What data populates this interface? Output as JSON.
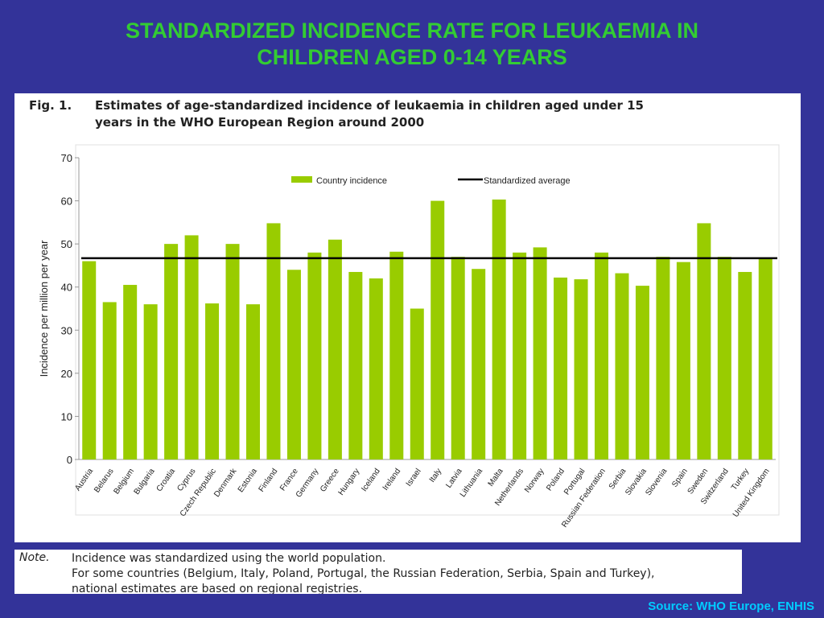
{
  "slide": {
    "title_line1": "STANDARDIZED INCIDENCE RATE FOR LEUKAEMIA IN",
    "title_line2": "CHILDREN AGED 0-14 YEARS",
    "source": "Source: WHO Europe, ENHIS"
  },
  "figure": {
    "label": "Fig. 1.",
    "caption_line1": "Estimates of age-standardized incidence of leukaemia in children aged under 15",
    "caption_line2": "years in the WHO European Region around 2000"
  },
  "note": {
    "label": "Note.",
    "lines": [
      "Incidence was standardized using the world population.",
      "For some countries (Belgium, Italy, Poland, Portugal, the Russian Federation, Serbia, Spain and Turkey),",
      "national estimates are based on regional registries."
    ]
  },
  "colors": {
    "bar": "#99cc00",
    "average_line": "#000000",
    "title": "#33cc33",
    "source": "#00ccff",
    "background": "#333399"
  },
  "chart_data": {
    "type": "bar",
    "ylabel": "Incidence per million per year",
    "ylim": [
      0,
      70
    ],
    "yticks": [
      0,
      10,
      20,
      30,
      40,
      50,
      60,
      70
    ],
    "grid": false,
    "legend_position": "top",
    "categories": [
      "Austria",
      "Belarus",
      "Belgium",
      "Bulgaria",
      "Croatia",
      "Cyprus",
      "Czech Republic",
      "Denmark",
      "Estonia",
      "Finland",
      "France",
      "Germany",
      "Greece",
      "Hungary",
      "Iceland",
      "Ireland",
      "Israel",
      "Italy",
      "Latvia",
      "Lithuania",
      "Malta",
      "Netherlands",
      "Norway",
      "Poland",
      "Portugal",
      "Russian Federation",
      "Serbia",
      "Slovakia",
      "Slovenia",
      "Spain",
      "Sweden",
      "Switzerland",
      "Turkey",
      "United Kingdom"
    ],
    "series": [
      {
        "name": "Country incidence",
        "values": [
          46,
          36.5,
          40.5,
          36,
          50,
          52,
          36.2,
          50,
          36,
          54.8,
          44,
          48,
          51,
          43.5,
          42,
          48.2,
          35,
          60,
          47,
          44.2,
          60.3,
          48,
          49.2,
          42.2,
          41.8,
          48,
          43.2,
          40.3,
          47,
          45.8,
          54.8,
          47,
          43.5,
          46.5
        ]
      }
    ],
    "reference_line": {
      "name": "Standardized average",
      "value": 46.7
    }
  }
}
